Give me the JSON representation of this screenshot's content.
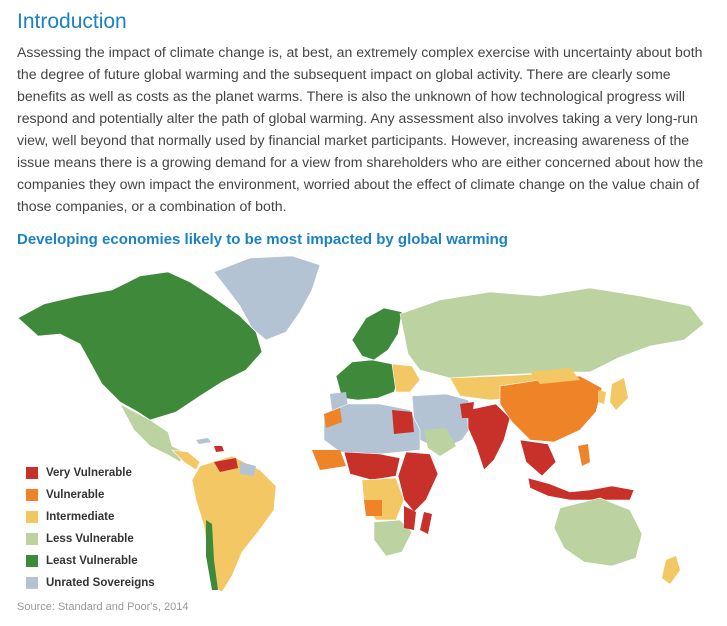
{
  "section": {
    "heading": "Introduction",
    "paragraph": "Assessing the impact of climate change is, at best, an extremely complex exercise with uncertainty about both the degree of future global warming and the subsequent impact on global activity. There are clearly some benefits as well as costs as the planet warms. There is also the unknown of how technological progress will respond and potentially alter the path of global warming. Any assessment also involves taking a very long-run view, well beyond that normally used by financial market participants. However, increasing awareness of the issue means there is a growing demand for a view from shareholders who are either concerned about how the companies they own impact the environment, worried about the effect of climate change on the value chain of those companies, or a combination of both."
  },
  "map": {
    "title": "Developing economies likely to be most impacted by global warming",
    "legend": [
      {
        "label": "Very Vulnerable",
        "color": "#c8302a"
      },
      {
        "label": "Vulnerable",
        "color": "#ee8328"
      },
      {
        "label": "Intermediate",
        "color": "#f4c765"
      },
      {
        "label": "Less Vulnerable",
        "color": "#bcd3a1"
      },
      {
        "label": "Least Vulnerable",
        "color": "#3f8a3a"
      },
      {
        "label": "Unrated Sovereigns",
        "color": "#b3c3d3"
      }
    ],
    "source": "Source: Standard and Poor's, 2014"
  }
}
